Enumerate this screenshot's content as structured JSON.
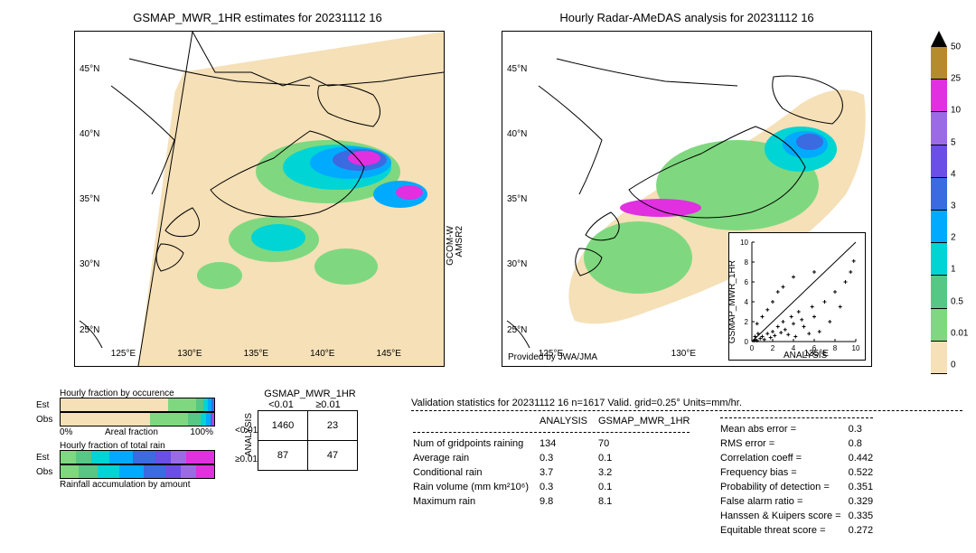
{
  "titles": {
    "left": "GSMAP_MWR_1HR estimates for 20231112 16",
    "right": "Hourly Radar-AMeDAS analysis for 20231112 16"
  },
  "map": {
    "lat_ticks": [
      "25°N",
      "30°N",
      "35°N",
      "40°N",
      "45°N"
    ],
    "lon_ticks_left": [
      "125°E",
      "130°E",
      "135°E",
      "140°E",
      "145°E"
    ],
    "lon_ticks_right": [
      "125°E",
      "130°E",
      "135°E"
    ],
    "provided_by": "Provided by JWA/JMA",
    "sensor_lbl1": "GCOM-W",
    "sensor_lbl2": "AMSR2"
  },
  "colorbar": {
    "levels": [
      "0",
      "0.01",
      "0.5",
      "1",
      "2",
      "3",
      "4",
      "5",
      "10",
      "25",
      "50"
    ],
    "colors": [
      "#f5e0b7",
      "#7fd87f",
      "#57c785",
      "#00d4d4",
      "#00aaff",
      "#3a6be0",
      "#6b4ee6",
      "#9b6be6",
      "#e030e0",
      "#b88a2e"
    ]
  },
  "fraction_bars": {
    "title1": "Hourly fraction by occurence",
    "title2": "Hourly fraction of total rain",
    "title3": "Rainfall accumulation by amount",
    "est_label": "Est",
    "obs_label": "Obs",
    "axis_left": "0%",
    "axis_mid": "Areal fraction",
    "axis_right": "100%",
    "occ_est": [
      {
        "c": "#f5e0b7",
        "w": 0.7
      },
      {
        "c": "#7fd87f",
        "w": 0.18
      },
      {
        "c": "#57c785",
        "w": 0.05
      },
      {
        "c": "#00d4d4",
        "w": 0.03
      },
      {
        "c": "#00aaff",
        "w": 0.02
      },
      {
        "c": "#3a6be0",
        "w": 0.015
      },
      {
        "c": "#e030e0",
        "w": 0.005
      }
    ],
    "occ_obs": [
      {
        "c": "#f5e0b7",
        "w": 0.58
      },
      {
        "c": "#7fd87f",
        "w": 0.25
      },
      {
        "c": "#57c785",
        "w": 0.08
      },
      {
        "c": "#00d4d4",
        "w": 0.04
      },
      {
        "c": "#00aaff",
        "w": 0.025
      },
      {
        "c": "#3a6be0",
        "w": 0.015
      },
      {
        "c": "#e030e0",
        "w": 0.01
      }
    ],
    "rain_est": [
      {
        "c": "#7fd87f",
        "w": 0.1
      },
      {
        "c": "#57c785",
        "w": 0.1
      },
      {
        "c": "#00d4d4",
        "w": 0.12
      },
      {
        "c": "#00aaff",
        "w": 0.15
      },
      {
        "c": "#3a6be0",
        "w": 0.15
      },
      {
        "c": "#6b4ee6",
        "w": 0.1
      },
      {
        "c": "#9b6be6",
        "w": 0.1
      },
      {
        "c": "#e030e0",
        "w": 0.18
      }
    ],
    "rain_obs": [
      {
        "c": "#7fd87f",
        "w": 0.12
      },
      {
        "c": "#57c785",
        "w": 0.12
      },
      {
        "c": "#00d4d4",
        "w": 0.14
      },
      {
        "c": "#00aaff",
        "w": 0.16
      },
      {
        "c": "#3a6be0",
        "w": 0.14
      },
      {
        "c": "#6b4ee6",
        "w": 0.1
      },
      {
        "c": "#9b6be6",
        "w": 0.1
      },
      {
        "c": "#e030e0",
        "w": 0.12
      }
    ]
  },
  "contingency": {
    "col_title": "GSMAP_MWR_1HR",
    "row_title": "ANALYSIS",
    "col1": "<0.01",
    "col2": "≥0.01",
    "r1c1": "1460",
    "r1c2": "23",
    "r2c1": "87",
    "r2c2": "47"
  },
  "validation": {
    "header": "Validation statistics for 20231112 16  n=1617 Valid. grid=0.25° Units=mm/hr.",
    "col1": "ANALYSIS",
    "col2": "GSMAP_MWR_1HR",
    "rows": [
      {
        "label": "Num of gridpoints raining",
        "v1": "134",
        "v2": "70"
      },
      {
        "label": "Average rain",
        "v1": "0.3",
        "v2": "0.1"
      },
      {
        "label": "Conditional rain",
        "v1": "3.7",
        "v2": "3.2"
      },
      {
        "label": "Rain volume (mm km²10⁶)",
        "v1": "0.3",
        "v2": "0.1"
      },
      {
        "label": "Maximum rain",
        "v1": "9.8",
        "v2": "8.1"
      }
    ],
    "stats": [
      {
        "label": "Mean abs error =",
        "v": "0.3"
      },
      {
        "label": "RMS error =",
        "v": "0.8"
      },
      {
        "label": "Correlation coeff =",
        "v": "0.442"
      },
      {
        "label": "Frequency bias =",
        "v": "0.522"
      },
      {
        "label": "Probability of detection =",
        "v": "0.351"
      },
      {
        "label": "False alarm ratio =",
        "v": "0.329"
      },
      {
        "label": "Hanssen & Kuipers score =",
        "v": "0.335"
      },
      {
        "label": "Equitable threat score =",
        "v": "0.272"
      }
    ]
  },
  "scatter": {
    "xlabel": "ANALYSIS",
    "ylabel": "GSMAP_MWR_1HR",
    "lim": [
      0,
      10
    ],
    "ticks": [
      0,
      2,
      4,
      6,
      8,
      10
    ],
    "points": [
      [
        0.2,
        0.1
      ],
      [
        0.3,
        0.2
      ],
      [
        0.5,
        0.1
      ],
      [
        0.8,
        0.3
      ],
      [
        1.0,
        0.5
      ],
      [
        1.2,
        0.2
      ],
      [
        1.5,
        0.8
      ],
      [
        1.8,
        0.4
      ],
      [
        2.0,
        1.0
      ],
      [
        2.2,
        0.6
      ],
      [
        2.5,
        1.5
      ],
      [
        2.8,
        0.9
      ],
      [
        3.0,
        2.0
      ],
      [
        3.2,
        1.2
      ],
      [
        3.5,
        0.7
      ],
      [
        3.8,
        2.5
      ],
      [
        4.0,
        1.8
      ],
      [
        4.2,
        0.5
      ],
      [
        4.5,
        3.0
      ],
      [
        4.8,
        2.2
      ],
      [
        5.0,
        1.5
      ],
      [
        5.5,
        0.8
      ],
      [
        5.8,
        3.5
      ],
      [
        6.0,
        2.5
      ],
      [
        6.5,
        1.0
      ],
      [
        7.0,
        4.0
      ],
      [
        7.5,
        2.0
      ],
      [
        8.0,
        5.0
      ],
      [
        8.5,
        3.5
      ],
      [
        9.0,
        6.0
      ],
      [
        9.5,
        7.0
      ],
      [
        9.8,
        8.1
      ],
      [
        1.0,
        2.5
      ],
      [
        2.0,
        4.0
      ],
      [
        3.0,
        5.5
      ],
      [
        0.5,
        1.8
      ],
      [
        1.5,
        3.2
      ],
      [
        2.5,
        5.0
      ],
      [
        4.0,
        6.5
      ],
      [
        6.0,
        7.0
      ],
      [
        0.3,
        0.5
      ],
      [
        0.6,
        0.8
      ]
    ]
  }
}
